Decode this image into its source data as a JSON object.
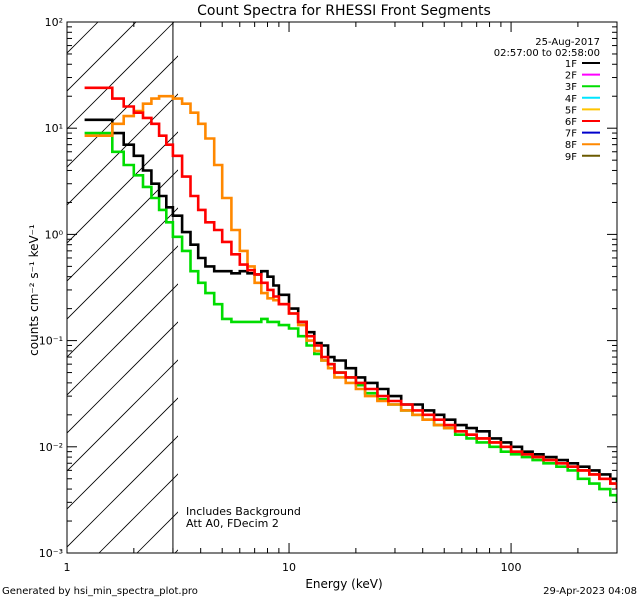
{
  "chart_data": {
    "type": "line",
    "title": "Count Spectra for RHESSI Front Segments",
    "xlabel": "Energy (keV)",
    "ylabel": "counts cm⁻² s⁻¹ keV⁻¹",
    "xscale": "log",
    "yscale": "log",
    "xlim": [
      1,
      300
    ],
    "ylim": [
      0.001,
      100
    ],
    "x_tick_labels": [
      "1",
      "10",
      "100"
    ],
    "y_tick_labels": [
      "10⁻³",
      "10⁻²",
      "10⁻¹",
      "10⁰",
      "10¹",
      "10²"
    ],
    "attenuator_cutoff_keV": 3,
    "legend": {
      "position": "top-right",
      "date": "25-Aug-2017",
      "time_range": "02:57:00 to 02:58:00",
      "entries": [
        {
          "label": "1F",
          "color": "#000000"
        },
        {
          "label": "2F",
          "color": "#ff00ff"
        },
        {
          "label": "3F",
          "color": "#00dd00"
        },
        {
          "label": "4F",
          "color": "#00e5ff"
        },
        {
          "label": "5F",
          "color": "#ffc400"
        },
        {
          "label": "6F",
          "color": "#ff0000"
        },
        {
          "label": "7F",
          "color": "#0000cc"
        },
        {
          "label": "8F",
          "color": "#ff8800"
        },
        {
          "label": "9F",
          "color": "#6b5a00"
        }
      ]
    },
    "annotations": [
      "Includes Background",
      "Att A0, FDecim 2"
    ],
    "series": [
      {
        "name": "1F",
        "color": "#000000",
        "x": [
          1.2,
          1.4,
          1.6,
          1.8,
          2.0,
          2.2,
          2.4,
          2.6,
          2.8,
          3.0,
          3.3,
          3.6,
          3.9,
          4.2,
          4.6,
          5.0,
          5.5,
          6.0,
          6.5,
          7.0,
          7.5,
          8.0,
          8.5,
          9.0,
          10,
          11,
          12,
          13,
          14,
          15,
          16,
          18,
          20,
          22,
          25,
          28,
          32,
          36,
          40,
          45,
          50,
          56,
          63,
          70,
          80,
          90,
          100,
          112,
          125,
          140,
          160,
          180,
          200,
          225,
          250,
          280,
          300
        ],
        "values": [
          12,
          12,
          9,
          7,
          5.5,
          4,
          3,
          2.3,
          1.8,
          1.5,
          1.05,
          0.8,
          0.6,
          0.5,
          0.45,
          0.45,
          0.43,
          0.45,
          0.43,
          0.42,
          0.45,
          0.4,
          0.33,
          0.27,
          0.2,
          0.15,
          0.12,
          0.095,
          0.09,
          0.07,
          0.065,
          0.055,
          0.045,
          0.04,
          0.035,
          0.03,
          0.025,
          0.025,
          0.022,
          0.02,
          0.018,
          0.016,
          0.015,
          0.014,
          0.012,
          0.011,
          0.01,
          0.009,
          0.0085,
          0.008,
          0.0075,
          0.007,
          0.0065,
          0.006,
          0.0055,
          0.005,
          0.0045
        ]
      },
      {
        "name": "3F",
        "color": "#00dd00",
        "x": [
          1.2,
          1.4,
          1.6,
          1.8,
          2.0,
          2.2,
          2.4,
          2.6,
          2.8,
          3.0,
          3.3,
          3.6,
          3.9,
          4.2,
          4.6,
          5.0,
          5.5,
          6.0,
          6.5,
          7.0,
          7.5,
          8.0,
          8.5,
          9.0,
          10,
          11,
          12,
          13,
          14,
          15,
          16,
          18,
          20,
          22,
          25,
          28,
          32,
          36,
          40,
          45,
          50,
          56,
          63,
          70,
          80,
          90,
          100,
          112,
          125,
          140,
          160,
          180,
          200,
          225,
          250,
          280,
          300
        ],
        "values": [
          9,
          9,
          6,
          4.5,
          3.6,
          2.8,
          2.2,
          1.7,
          1.3,
          0.95,
          0.7,
          0.45,
          0.35,
          0.28,
          0.22,
          0.16,
          0.15,
          0.15,
          0.15,
          0.15,
          0.16,
          0.15,
          0.15,
          0.14,
          0.13,
          0.11,
          0.09,
          0.075,
          0.065,
          0.06,
          0.05,
          0.045,
          0.038,
          0.032,
          0.028,
          0.025,
          0.022,
          0.02,
          0.018,
          0.016,
          0.015,
          0.013,
          0.012,
          0.011,
          0.01,
          0.009,
          0.0085,
          0.008,
          0.0075,
          0.007,
          0.0065,
          0.006,
          0.005,
          0.0045,
          0.004,
          0.0035,
          0.003
        ]
      },
      {
        "name": "6F",
        "color": "#ff0000",
        "x": [
          1.2,
          1.4,
          1.6,
          1.8,
          2.0,
          2.2,
          2.4,
          2.6,
          2.8,
          3.0,
          3.3,
          3.6,
          3.9,
          4.2,
          4.6,
          5.0,
          5.5,
          6.0,
          6.5,
          7.0,
          7.5,
          8.0,
          8.5,
          9.0,
          10,
          11,
          12,
          13,
          14,
          15,
          16,
          18,
          20,
          22,
          25,
          28,
          32,
          36,
          40,
          45,
          50,
          56,
          63,
          70,
          80,
          90,
          100,
          112,
          125,
          140,
          160,
          180,
          200,
          225,
          250,
          280,
          300
        ],
        "values": [
          24,
          24,
          19,
          16,
          14,
          12.5,
          11,
          8.5,
          7,
          5.5,
          3.5,
          2.3,
          1.7,
          1.3,
          1.1,
          0.85,
          0.65,
          0.52,
          0.46,
          0.42,
          0.35,
          0.3,
          0.26,
          0.22,
          0.18,
          0.15,
          0.11,
          0.09,
          0.07,
          0.06,
          0.05,
          0.045,
          0.04,
          0.035,
          0.03,
          0.027,
          0.025,
          0.022,
          0.02,
          0.018,
          0.016,
          0.014,
          0.013,
          0.012,
          0.011,
          0.01,
          0.009,
          0.0085,
          0.008,
          0.0075,
          0.007,
          0.0065,
          0.006,
          0.0055,
          0.005,
          0.0045,
          0.004
        ]
      },
      {
        "name": "8F",
        "color": "#ff8800",
        "x": [
          1.2,
          1.4,
          1.6,
          1.8,
          2.0,
          2.2,
          2.4,
          2.6,
          2.8,
          3.0,
          3.3,
          3.6,
          3.9,
          4.2,
          4.6,
          5.0,
          5.5,
          6.0,
          6.5,
          7.0,
          7.5,
          8.0,
          8.5,
          9.0,
          10,
          11,
          12,
          13,
          14,
          15,
          16,
          18,
          20,
          22,
          25,
          28,
          32,
          36,
          40,
          45,
          50,
          56,
          63,
          70,
          80,
          90,
          100,
          112,
          125,
          140,
          160,
          180,
          200,
          225,
          250,
          280,
          300
        ],
        "values": [
          8.5,
          8.5,
          11,
          13,
          14.5,
          17,
          19,
          20,
          20,
          19,
          17,
          14,
          11,
          8,
          4.5,
          2.2,
          1.1,
          0.7,
          0.5,
          0.35,
          0.28,
          0.25,
          0.24,
          0.22,
          0.18,
          0.14,
          0.1,
          0.08,
          0.065,
          0.055,
          0.045,
          0.04,
          0.035,
          0.03,
          0.027,
          0.025,
          0.022,
          0.02,
          0.018,
          0.016,
          0.015,
          0.014,
          0.013,
          0.012,
          0.011,
          0.01,
          0.009,
          0.0085,
          0.008,
          0.0075,
          0.007,
          0.0065,
          0.006,
          0.0055,
          0.005,
          0.0045,
          0.004
        ]
      }
    ]
  },
  "footer": {
    "generated_by": "Generated by hsi_min_spectra_plot.pro",
    "timestamp": "29-Apr-2023 04:08"
  }
}
